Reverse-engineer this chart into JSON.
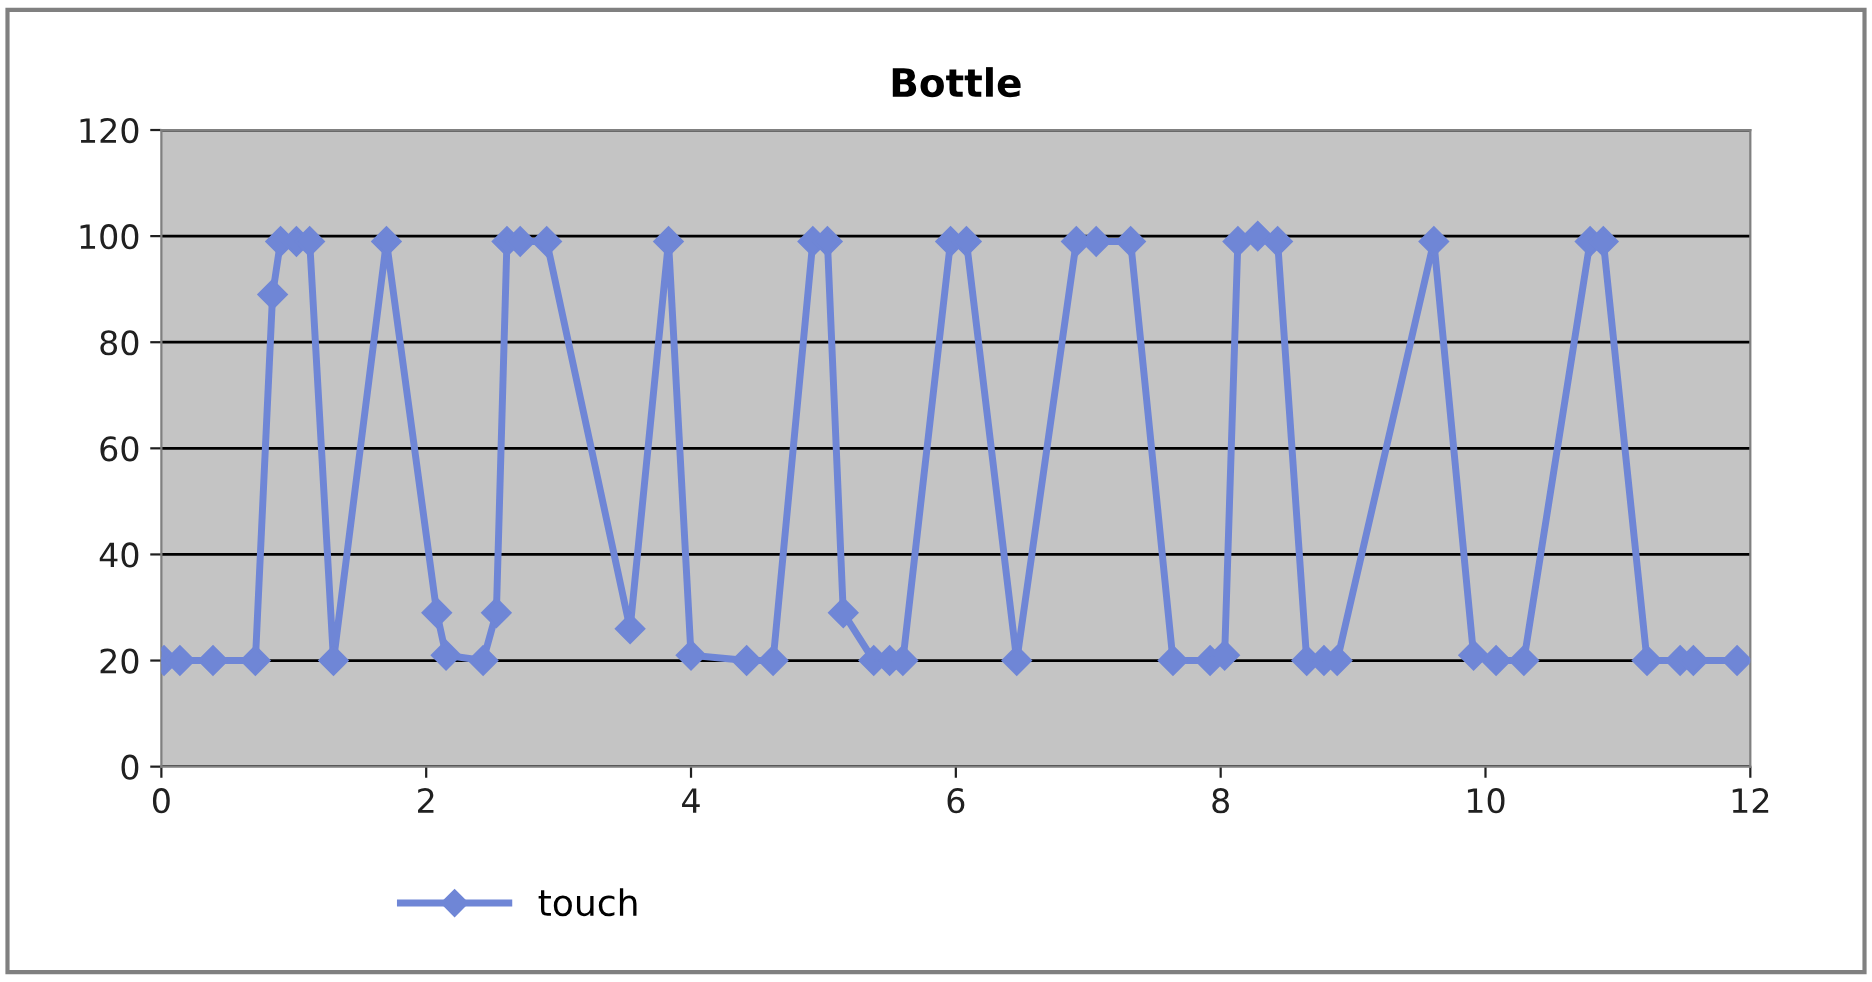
{
  "chart_data": {
    "type": "line",
    "title": "Bottle",
    "x": [
      0.02,
      0.14,
      0.39,
      0.71,
      0.84,
      0.9,
      1.02,
      1.12,
      1.3,
      1.7,
      2.08,
      2.15,
      2.43,
      2.53,
      2.61,
      2.71,
      2.91,
      3.54,
      3.83,
      4.0,
      4.42,
      4.62,
      4.92,
      5.03,
      5.15,
      5.38,
      5.5,
      5.6,
      5.96,
      6.08,
      6.46,
      6.91,
      7.06,
      7.32,
      7.64,
      7.92,
      8.03,
      8.13,
      8.28,
      8.43,
      8.65,
      8.78,
      8.88,
      9.61,
      9.91,
      10.08,
      10.29,
      10.79,
      10.89,
      11.22,
      11.47,
      11.57,
      11.9
    ],
    "series": [
      {
        "name": "touch",
        "color": "#6f86d6",
        "values": [
          20,
          20,
          20,
          20,
          89,
          99,
          99,
          99,
          20,
          99,
          29,
          21,
          20,
          29,
          99,
          99,
          99,
          26,
          99,
          21,
          20,
          20,
          99,
          99,
          29,
          20,
          20,
          20,
          99,
          99,
          20,
          99,
          99,
          99,
          20,
          20,
          21,
          99,
          100,
          99,
          20,
          20,
          20,
          99,
          21,
          20,
          20,
          99,
          99,
          20,
          20,
          20,
          20
        ]
      }
    ],
    "xlim": [
      0,
      12
    ],
    "xticks": [
      0,
      2,
      4,
      6,
      8,
      10,
      12
    ],
    "ylim": [
      0,
      120
    ],
    "yticks": [
      0,
      20,
      40,
      60,
      80,
      100,
      120
    ],
    "grid": "y",
    "legend": "bottom left",
    "marker": "diamond",
    "line_style": "solid"
  }
}
